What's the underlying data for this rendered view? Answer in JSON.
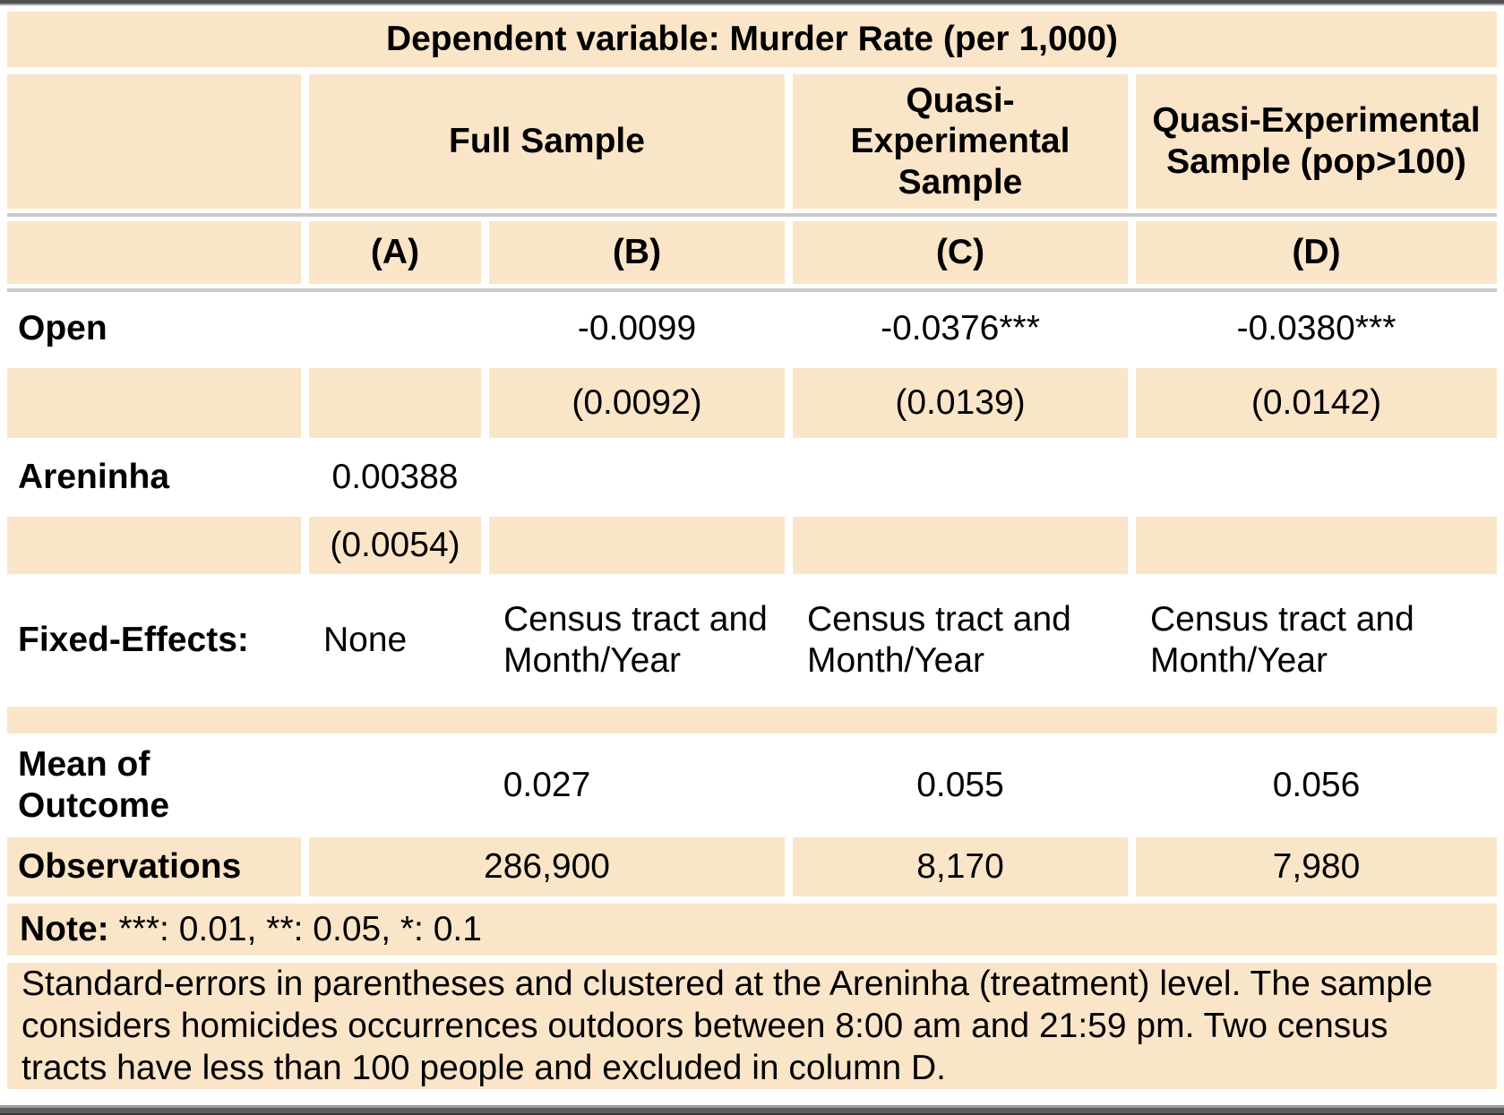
{
  "table": {
    "title": "Dependent variable: Murder Rate (per 1,000)",
    "col_groups": {
      "full_sample": "Full Sample",
      "quasi_experimental": "Quasi-\nExperimental\nSample",
      "quasi_experimental_pop": "Quasi-Experimental\nSample (pop>100)"
    },
    "model_labels": {
      "a": "(A)",
      "b": "(B)",
      "c": "(C)",
      "d": "(D)"
    },
    "rows": {
      "open": {
        "label": "Open",
        "b": "-0.0099",
        "c": "-0.0376***",
        "d": "-0.0380***"
      },
      "open_se": {
        "b": "(0.0092)",
        "c": "(0.0139)",
        "d": "(0.0142)"
      },
      "areninha": {
        "label": "Areninha",
        "a": "0.00388"
      },
      "areninha_se": {
        "a": "(0.0054)"
      },
      "fixed_effects": {
        "label": "Fixed-Effects:",
        "a": "None",
        "b": "Census tract and\nMonth/Year",
        "c": "Census tract and\nMonth/Year",
        "d": "Census tract and\nMonth/Year"
      },
      "mean_outcome": {
        "label": "Mean of\nOutcome",
        "ab": "0.027",
        "c": "0.055",
        "d": "0.056"
      },
      "observations": {
        "label": "Observations",
        "ab": "286,900",
        "c": "8,170",
        "d": "7,980"
      }
    },
    "note": {
      "prefix": "Note:",
      "text": "***: 0.01, **: 0.05, *: 0.1"
    },
    "footnote": "Standard-errors in parentheses and clustered at the Areninha (treatment) level. The sample considers homicides occurrences outdoors between 8:00 am and 21:59 pm. Two census tracts have less than 100 people and excluded in column D.",
    "colors": {
      "cell_background": "#fae5c9",
      "rule_gray": "#c9c9c9",
      "frame_dark": "#515154",
      "frame_light": "#a3a3a3",
      "text": "#000000"
    }
  }
}
